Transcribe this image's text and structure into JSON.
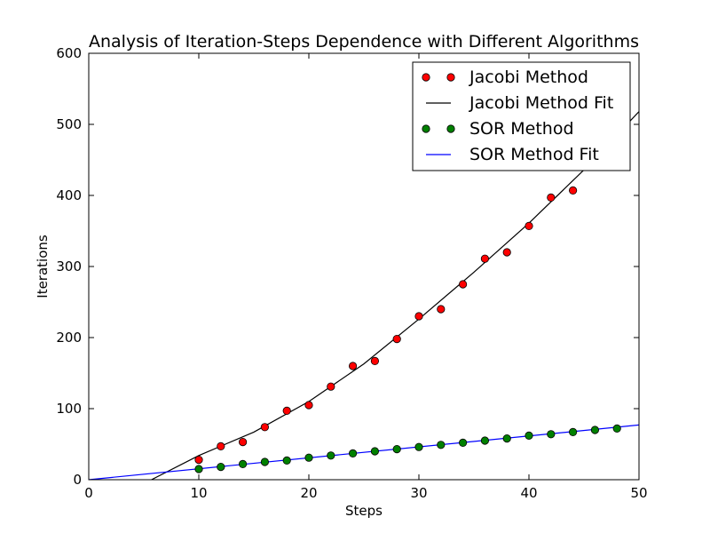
{
  "chart_data": {
    "type": "scatter",
    "title": "Analysis of Iteration-Steps Dependence with Different Algorithms",
    "xlabel": "Steps",
    "ylabel": "Iterations",
    "xlim": [
      0,
      50
    ],
    "ylim": [
      0,
      600
    ],
    "xticks": [
      0,
      10,
      20,
      30,
      40,
      50
    ],
    "yticks": [
      0,
      100,
      200,
      300,
      400,
      500,
      600
    ],
    "grid": false,
    "legend_position": "top-right",
    "series": [
      {
        "name": "Jacobi Method",
        "kind": "scatter",
        "color": "#ff0000",
        "x": [
          10,
          12,
          14,
          16,
          18,
          20,
          22,
          24,
          26,
          28,
          30,
          32,
          34,
          36,
          38,
          40,
          42,
          44
        ],
        "y": [
          28,
          47,
          53,
          74,
          97,
          105,
          131,
          160,
          167,
          198,
          230,
          240,
          275,
          311,
          320,
          357,
          397,
          407
        ]
      },
      {
        "name": "Jacobi Method Fit",
        "kind": "line",
        "color": "#000000",
        "x": [
          5.7,
          10,
          15,
          20,
          25,
          30,
          35,
          40,
          45,
          50
        ],
        "y": [
          0,
          34,
          67,
          110,
          163,
          226,
          292,
          361,
          436,
          518
        ]
      },
      {
        "name": "SOR Method",
        "kind": "scatter",
        "color": "#008000",
        "x": [
          10,
          12,
          14,
          16,
          18,
          20,
          22,
          24,
          26,
          28,
          30,
          32,
          34,
          36,
          38,
          40,
          42,
          44,
          46,
          48
        ],
        "y": [
          15,
          18,
          22,
          25,
          27,
          31,
          34,
          37,
          40,
          43,
          46,
          49,
          52,
          55,
          58,
          62,
          64,
          67,
          70,
          72
        ]
      },
      {
        "name": "SOR Method Fit",
        "kind": "line",
        "color": "#0000ff",
        "x": [
          0,
          50
        ],
        "y": [
          0,
          77
        ]
      }
    ]
  }
}
